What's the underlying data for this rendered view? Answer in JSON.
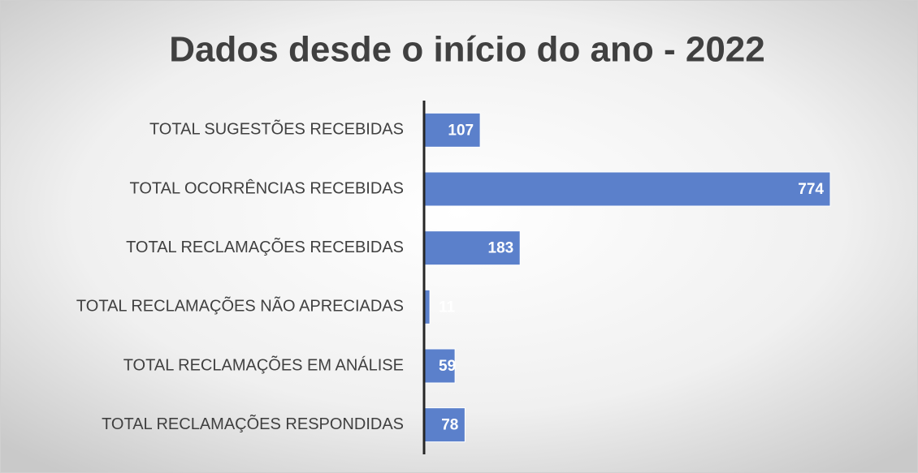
{
  "chart_data": {
    "type": "barh",
    "title": "Dados desde o início do ano - 2022",
    "categories": [
      "TOTAL SUGESTÕES RECEBIDAS",
      "TOTAL OCORRÊNCIAS RECEBIDAS",
      "TOTAL RECLAMAÇÕES RECEBIDAS",
      "TOTAL RECLAMAÇÕES NÃO APRECIADAS",
      "TOTAL RECLAMAÇÕES EM ANÁLISE",
      "TOTAL RECLAMAÇÕES RESPONDIDAS"
    ],
    "values": [
      107,
      774,
      183,
      11,
      59,
      78
    ],
    "color": "#5b80cb"
  }
}
